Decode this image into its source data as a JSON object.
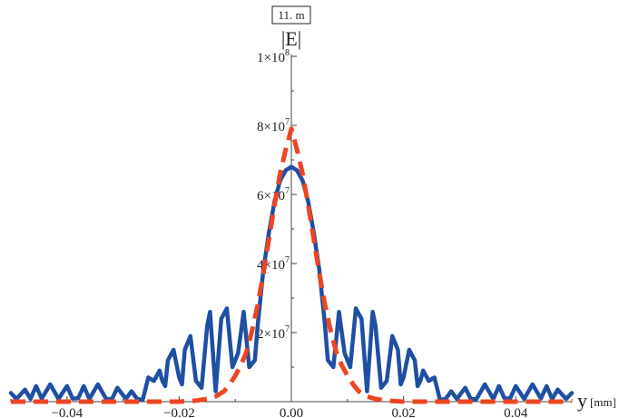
{
  "chart_data": {
    "type": "line",
    "badge": "11. m",
    "ylabel": "|E|",
    "xlabel": "y",
    "xunit": "[mm]",
    "xlim": [
      -0.05,
      0.05
    ],
    "ylim": [
      0,
      100000000
    ],
    "xticks": [
      {
        "value": -0.04,
        "label": "−0.04"
      },
      {
        "value": -0.02,
        "label": "−0.02"
      },
      {
        "value": 0.0,
        "label": "0.00"
      },
      {
        "value": 0.02,
        "label": "0.02"
      },
      {
        "value": 0.04,
        "label": "0.04"
      }
    ],
    "yticks": [
      {
        "value": 20000000,
        "mantissa": "2",
        "times": "×10",
        "exp": "7"
      },
      {
        "value": 40000000,
        "mantissa": "4",
        "times": "×10",
        "exp": "7"
      },
      {
        "value": 60000000,
        "mantissa": "6",
        "times": "×10",
        "exp": "7"
      },
      {
        "value": 80000000,
        "mantissa": "8",
        "times": "×10",
        "exp": "7"
      },
      {
        "value": 100000000,
        "mantissa": "1",
        "times": "×10",
        "exp": "8"
      }
    ],
    "series": [
      {
        "color": "#1f4fa3",
        "style": "solid",
        "x": [
          -0.05,
          -0.049,
          -0.0475,
          -0.0465,
          -0.0455,
          -0.0445,
          -0.043,
          -0.0415,
          -0.04,
          -0.039,
          -0.038,
          -0.037,
          -0.036,
          -0.0345,
          -0.033,
          -0.032,
          -0.031,
          -0.0295,
          -0.0285,
          -0.0275,
          -0.0265,
          -0.0255,
          -0.0245,
          -0.0235,
          -0.023,
          -0.0225,
          -0.022,
          -0.021,
          -0.02,
          -0.0195,
          -0.019,
          -0.018,
          -0.017,
          -0.016,
          -0.015,
          -0.0145,
          -0.0135,
          -0.0125,
          -0.0115,
          -0.0105,
          -0.0095,
          -0.0085,
          -0.0075,
          -0.0065,
          -0.006,
          -0.005,
          -0.004,
          -0.003,
          -0.002,
          -0.001,
          0.0,
          0.001,
          0.002,
          0.003,
          0.004,
          0.005,
          0.006,
          0.0065,
          0.0075,
          0.0085,
          0.0095,
          0.0105,
          0.0115,
          0.0125,
          0.0135,
          0.0145,
          0.015,
          0.016,
          0.017,
          0.018,
          0.019,
          0.0195,
          0.02,
          0.021,
          0.022,
          0.0225,
          0.023,
          0.0235,
          0.0245,
          0.0255,
          0.0265,
          0.0275,
          0.0285,
          0.0295,
          0.031,
          0.032,
          0.033,
          0.0345,
          0.036,
          0.037,
          0.038,
          0.039,
          0.04,
          0.0415,
          0.043,
          0.0445,
          0.0455,
          0.0465,
          0.0475,
          0.049,
          0.05
        ],
        "y": [
          2500000,
          800000,
          3500000,
          800000,
          4500000,
          900000,
          5000000,
          800000,
          4500000,
          900000,
          1000000,
          4500000,
          800000,
          5000000,
          700000,
          700000,
          4000000,
          800000,
          3000000,
          800000,
          500000,
          7000000,
          6000000,
          9000000,
          6000000,
          4500000,
          12000000,
          15000000,
          7000000,
          5000000,
          15000000,
          19000000,
          6000000,
          4000000,
          22000000,
          26000000,
          3000000,
          24000000,
          27000000,
          10000000,
          14000000,
          26000000,
          10000000,
          12000000,
          22000000,
          38000000,
          49000000,
          58000000,
          64000000,
          67000000,
          68000000,
          67000000,
          64000000,
          58000000,
          49000000,
          38000000,
          22000000,
          12000000,
          10000000,
          26000000,
          14000000,
          10000000,
          27000000,
          24000000,
          3000000,
          26000000,
          22000000,
          4000000,
          6000000,
          19000000,
          15000000,
          5000000,
          7000000,
          15000000,
          12000000,
          4500000,
          6000000,
          9000000,
          6000000,
          7000000,
          500000,
          800000,
          3000000,
          800000,
          4000000,
          700000,
          700000,
          5000000,
          800000,
          4500000,
          1000000,
          900000,
          4500000,
          800000,
          5000000,
          900000,
          4500000,
          800000,
          3500000,
          800000,
          2500000
        ]
      },
      {
        "color": "#ee4422",
        "style": "dashed",
        "x": [
          -0.05,
          -0.025,
          -0.02,
          -0.017,
          -0.015,
          -0.0135,
          -0.012,
          -0.011,
          -0.01,
          -0.009,
          -0.008,
          -0.007,
          -0.006,
          -0.005,
          -0.004,
          -0.003,
          -0.002,
          -0.001,
          0.0,
          0.001,
          0.002,
          0.003,
          0.004,
          0.005,
          0.006,
          0.007,
          0.008,
          0.009,
          0.01,
          0.011,
          0.012,
          0.0135,
          0.015,
          0.017,
          0.02,
          0.025,
          0.05
        ],
        "y": [
          0,
          0,
          0,
          300000,
          800000,
          1500000,
          3000000,
          5000000,
          7500000,
          10500000,
          14500000,
          20500000,
          28000000,
          37000000,
          47000000,
          57000000,
          66000000,
          73000000,
          79000000,
          73000000,
          66000000,
          57000000,
          47000000,
          37000000,
          28000000,
          20500000,
          14500000,
          10500000,
          7500000,
          5000000,
          3000000,
          1500000,
          800000,
          300000,
          0,
          0,
          0
        ]
      }
    ]
  }
}
